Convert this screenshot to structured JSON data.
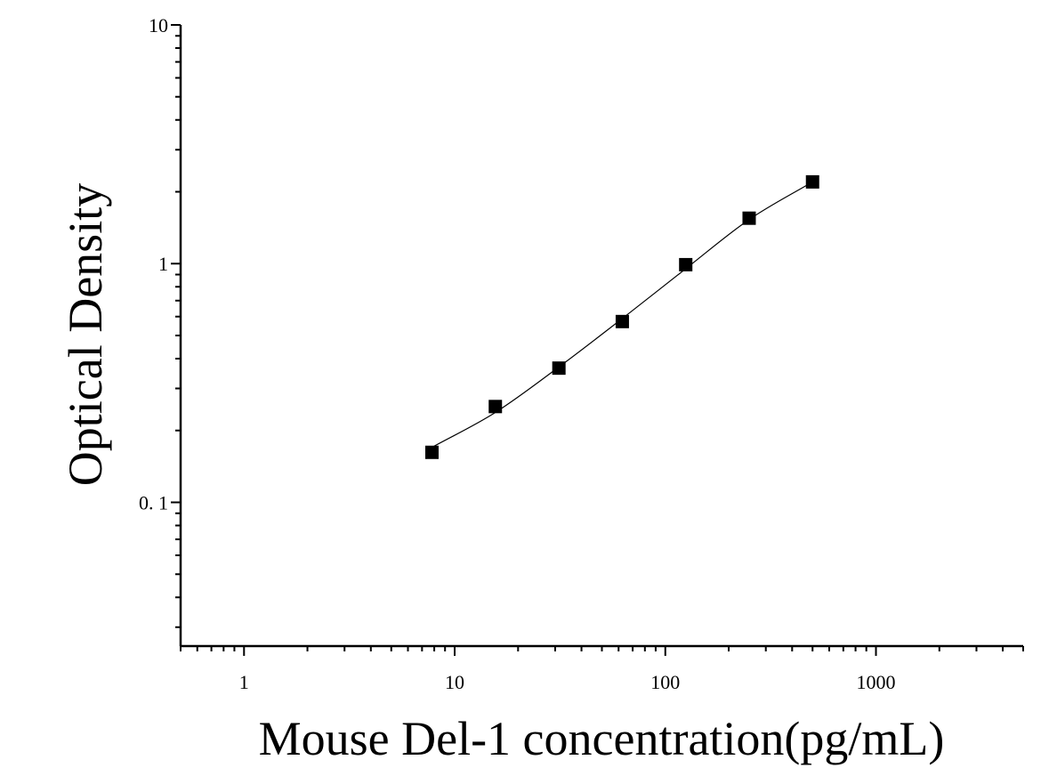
{
  "chart_data": {
    "type": "scatter",
    "title": "",
    "xlabel": "Mouse Del-1 concentration(pg/mL)",
    "ylabel": "Optical Density",
    "x_scale": "log",
    "y_scale": "log",
    "xlim": [
      0.5,
      5000
    ],
    "ylim": [
      0.025,
      10
    ],
    "x_tick_values": [
      1,
      10,
      100,
      1000
    ],
    "x_tick_labels": [
      "1",
      "10",
      "100",
      "1000"
    ],
    "y_tick_values": [
      0.1,
      1,
      10
    ],
    "y_tick_labels": [
      "0. 1",
      "1",
      "10"
    ],
    "grid": false,
    "legend": "none",
    "series": [
      {
        "marker": "square",
        "color": "#000000",
        "x": [
          7.8,
          15.6,
          31.25,
          62.5,
          125,
          250,
          500
        ],
        "y": [
          0.162,
          0.252,
          0.365,
          0.572,
          0.99,
          1.55,
          2.2
        ]
      }
    ],
    "fit_curve": {
      "color": "#000000",
      "x": [
        7.8,
        15.6,
        31.25,
        62.5,
        125,
        250,
        500
      ],
      "y": [
        0.17,
        0.238,
        0.369,
        0.589,
        0.952,
        1.53,
        2.2
      ]
    }
  }
}
